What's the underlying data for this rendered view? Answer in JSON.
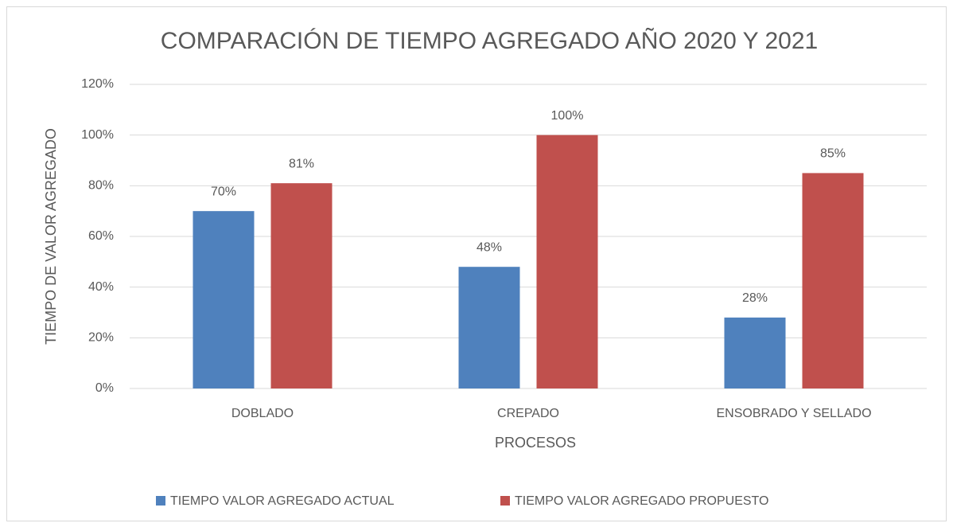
{
  "chart_data": {
    "type": "bar",
    "title": "COMPARACIÓN DE TIEMPO AGREGADO AÑO 2020 Y 2021",
    "x_label": "PROCESOS",
    "y_label": "TIEMPO DE VALOR AGREGADO",
    "categories": [
      "DOBLADO",
      "CREPADO",
      "ENSOBRADO Y SELLADO"
    ],
    "series": [
      {
        "name": "TIEMPO VALOR AGREGADO ACTUAL",
        "color": "#4f81bd",
        "values": [
          70,
          48,
          28
        ],
        "value_labels": [
          "70%",
          "48%",
          "28%"
        ]
      },
      {
        "name": "TIEMPO VALOR AGREGADO PROPUESTO",
        "color": "#c0504d",
        "values": [
          81,
          100,
          85
        ],
        "value_labels": [
          "81%",
          "100%",
          "85%"
        ]
      }
    ],
    "ylim": [
      0,
      120
    ],
    "yticks": [
      {
        "value": 0,
        "label": "0%"
      },
      {
        "value": 20,
        "label": "20%"
      },
      {
        "value": 40,
        "label": "40%"
      },
      {
        "value": 60,
        "label": "60%"
      },
      {
        "value": 80,
        "label": "80%"
      },
      {
        "value": 100,
        "label": "100%"
      },
      {
        "value": 120,
        "label": "120%"
      }
    ],
    "grid": true,
    "legend": "bottom"
  }
}
